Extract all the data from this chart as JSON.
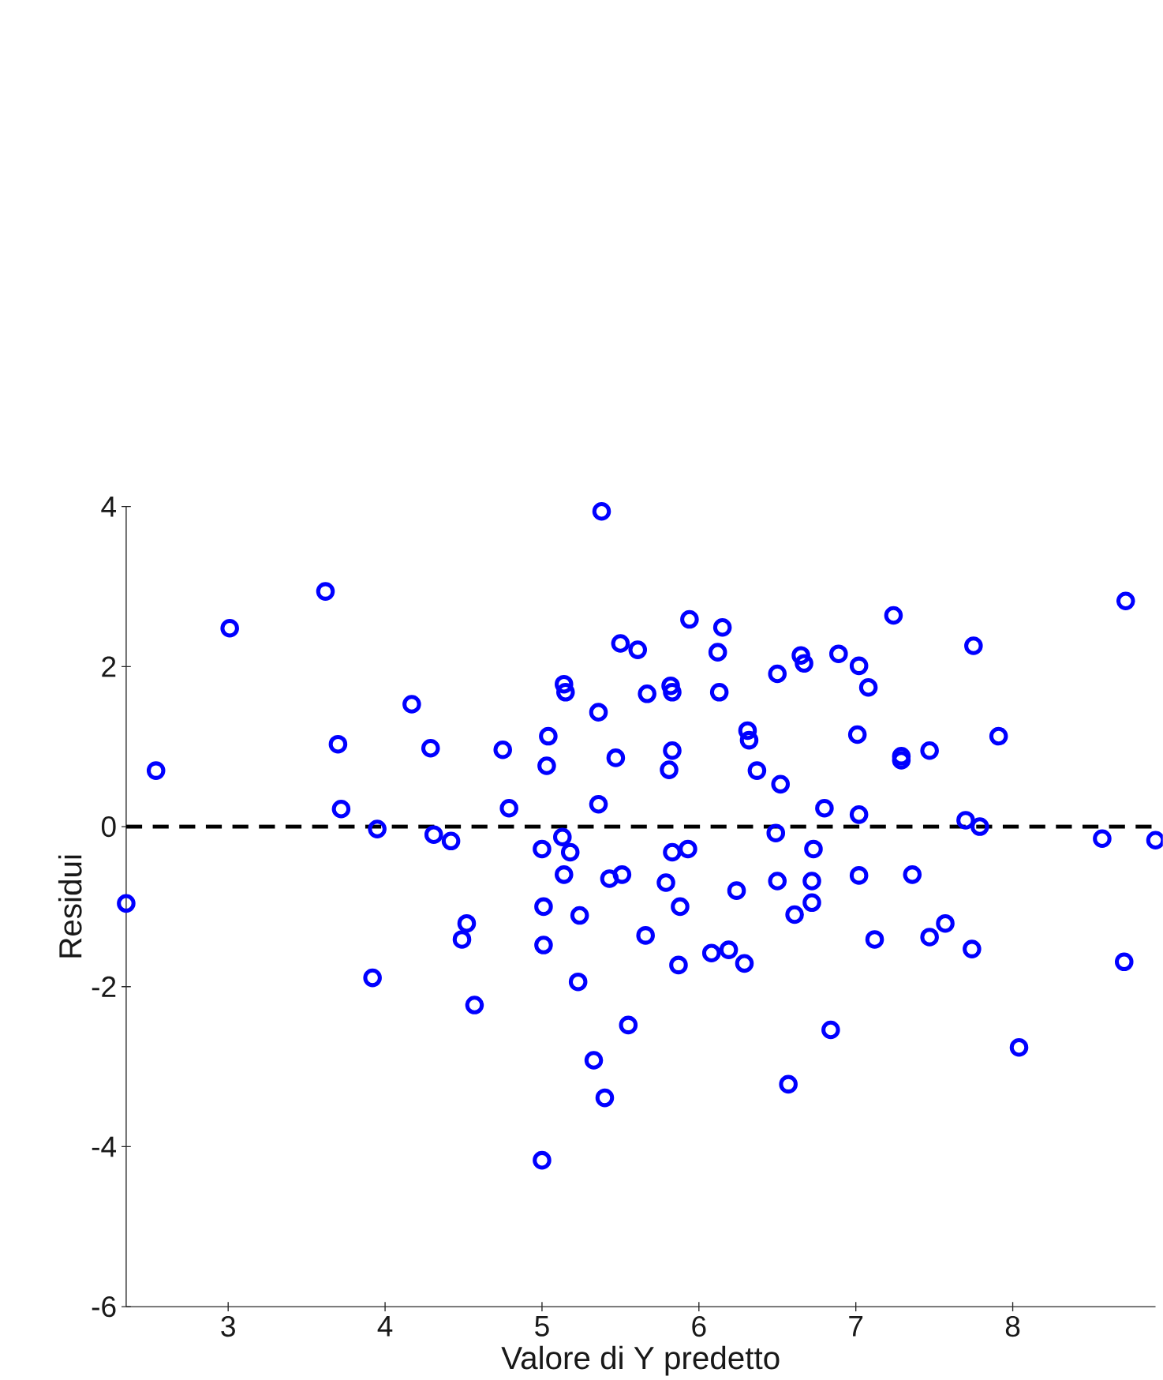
{
  "chart_data": {
    "type": "scatter",
    "xlabel": "Valore di Y predetto",
    "ylabel": "Residui",
    "x": [
      2.35,
      2.54,
      3.01,
      3.62,
      3.7,
      3.72,
      3.92,
      3.95,
      4.17,
      4.29,
      4.31,
      4.42,
      4.52,
      4.49,
      4.57,
      4.75,
      4.79,
      5.04,
      5.03,
      5.0,
      5.01,
      5.01,
      5.0,
      5.13,
      5.18,
      5.14,
      5.14,
      5.15,
      5.24,
      5.23,
      5.36,
      5.36,
      5.33,
      5.4,
      5.38,
      5.43,
      5.51,
      5.47,
      5.5,
      5.61,
      5.55,
      5.67,
      5.66,
      5.79,
      5.81,
      5.83,
      5.82,
      5.83,
      5.83,
      5.93,
      5.88,
      5.87,
      5.94,
      6.08,
      6.12,
      6.15,
      6.13,
      6.19,
      6.24,
      6.29,
      6.31,
      6.32,
      6.37,
      6.5,
      6.52,
      6.49,
      6.5,
      6.61,
      6.57,
      6.65,
      6.67,
      6.72,
      6.73,
      6.72,
      6.8,
      6.84,
      6.89,
      7.02,
      7.01,
      7.02,
      7.02,
      7.08,
      7.12,
      7.24,
      7.29,
      7.29,
      7.36,
      7.47,
      7.47,
      7.57,
      7.7,
      7.75,
      7.74,
      7.79,
      7.91,
      8.04,
      8.57,
      8.71,
      8.72,
      8.91
    ],
    "values": [
      -0.96,
      0.7,
      2.48,
      2.94,
      1.03,
      0.22,
      -1.89,
      -0.03,
      1.53,
      0.98,
      -0.1,
      -0.18,
      -1.21,
      -1.41,
      -2.23,
      0.96,
      0.23,
      1.13,
      0.76,
      -0.28,
      -1.0,
      -1.48,
      -4.17,
      -0.13,
      -0.32,
      -0.6,
      1.78,
      1.68,
      -1.11,
      -1.94,
      1.43,
      0.28,
      -2.92,
      -3.39,
      3.94,
      -0.65,
      -0.6,
      0.86,
      2.29,
      2.21,
      -2.48,
      1.66,
      -1.36,
      -0.7,
      0.71,
      0.95,
      1.76,
      1.68,
      -0.32,
      -0.28,
      -1.0,
      -1.73,
      2.59,
      -1.58,
      2.18,
      2.49,
      1.68,
      -1.54,
      -0.8,
      -1.71,
      1.2,
      1.08,
      0.7,
      1.91,
      0.53,
      -0.08,
      -0.68,
      -1.1,
      -3.22,
      2.14,
      2.04,
      -0.95,
      -0.28,
      -0.68,
      0.23,
      -2.54,
      2.16,
      2.01,
      1.15,
      0.15,
      -0.61,
      1.74,
      -1.41,
      2.64,
      0.88,
      0.83,
      -0.6,
      0.95,
      -1.38,
      -1.21,
      0.08,
      2.26,
      -1.53,
      0.0,
      1.13,
      -2.76,
      -0.15,
      -1.69,
      2.82,
      -0.17
    ],
    "color": "#0000ff",
    "marker": "circle",
    "xlim": [
      2.35,
      8.91
    ],
    "ylim": [
      -6,
      4
    ],
    "xticks": [
      3,
      4,
      5,
      6,
      7,
      8
    ],
    "yticks": [
      -6,
      -4,
      -2,
      0,
      2,
      4
    ],
    "ref_lines": [
      {
        "axis": "y",
        "value": 0,
        "color": "#000000",
        "line_style": "dashed"
      }
    ]
  }
}
